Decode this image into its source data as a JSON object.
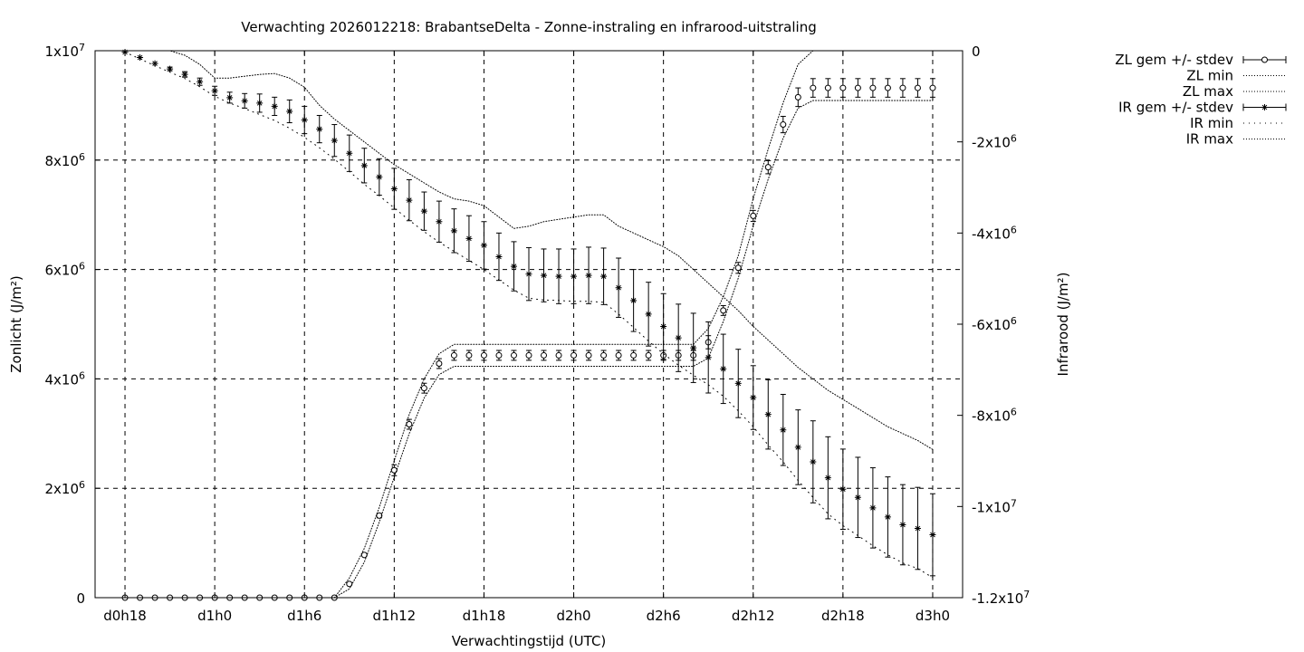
{
  "chart_data": {
    "type": "line",
    "title": "Verwachting 2026012218: BrabantseDelta - Zonne-instraling en infrarood-uitstraling",
    "xlabel": "Verwachtingstijd (UTC)",
    "ylabel": "Zonlicht (J/m²)",
    "y2label": "Infrarood (J/m²)",
    "x_ticks": [
      {
        "x": 18,
        "label": "d0h18"
      },
      {
        "x": 24,
        "label": "d1h0"
      },
      {
        "x": 30,
        "label": "d1h6"
      },
      {
        "x": 36,
        "label": "d1h12"
      },
      {
        "x": 42,
        "label": "d1h18"
      },
      {
        "x": 48,
        "label": "d2h0"
      },
      {
        "x": 54,
        "label": "d2h6"
      },
      {
        "x": 60,
        "label": "d2h12"
      },
      {
        "x": 66,
        "label": "d2h18"
      },
      {
        "x": 72,
        "label": "d3h0"
      }
    ],
    "xlim": [
      16,
      74
    ],
    "y_ticks": [
      {
        "y": 0,
        "label": "0"
      },
      {
        "y": 2000000,
        "label": "2x10",
        "sup": "6"
      },
      {
        "y": 4000000,
        "label": "4x10",
        "sup": "6"
      },
      {
        "y": 6000000,
        "label": "6x10",
        "sup": "6"
      },
      {
        "y": 8000000,
        "label": "8x10",
        "sup": "6"
      },
      {
        "y": 10000000,
        "label": "1x10",
        "sup": "7"
      }
    ],
    "ylim": [
      0,
      10000000
    ],
    "y2_ticks": [
      {
        "y": 0,
        "label": "0"
      },
      {
        "y": -2000000,
        "label": "-2x10",
        "sup": "6"
      },
      {
        "y": -4000000,
        "label": "-4x10",
        "sup": "6"
      },
      {
        "y": -6000000,
        "label": "-6x10",
        "sup": "6"
      },
      {
        "y": -8000000,
        "label": "-8x10",
        "sup": "6"
      },
      {
        "y": -10000000,
        "label": "-1x10",
        "sup": "7"
      },
      {
        "y": -12000000,
        "label": "-1.2x10",
        "sup": "7"
      }
    ],
    "y2lim": [
      -12000000,
      0
    ],
    "grid": true,
    "legend_position": "top-right, outside plot",
    "series": [
      {
        "name": "ZL gem +/- stdev",
        "axis": "y",
        "style": "errorbars-circle",
        "x": [
          18,
          19,
          20,
          21,
          22,
          23,
          24,
          25,
          26,
          27,
          28,
          29,
          30,
          31,
          32,
          33,
          34,
          35,
          36,
          37,
          38,
          39,
          40,
          41,
          42,
          43,
          44,
          45,
          46,
          47,
          48,
          49,
          50,
          51,
          52,
          53,
          54,
          55,
          56,
          57,
          58,
          59,
          60,
          61,
          62,
          63,
          64,
          65,
          66,
          67,
          68,
          69,
          70,
          71,
          72
        ],
        "values": [
          0,
          0,
          0,
          0,
          0,
          0,
          0,
          0,
          0,
          0,
          0,
          0,
          0,
          0,
          0,
          250000,
          780000,
          1500000,
          2330000,
          3170000,
          3830000,
          4280000,
          4430000,
          4430000,
          4430000,
          4430000,
          4430000,
          4430000,
          4430000,
          4430000,
          4430000,
          4430000,
          4430000,
          4430000,
          4430000,
          4430000,
          4430000,
          4430000,
          4430000,
          4670000,
          5250000,
          6030000,
          6980000,
          7870000,
          8650000,
          9150000,
          9320000,
          9320000,
          9320000,
          9320000,
          9320000,
          9320000,
          9320000,
          9320000,
          9320000
        ],
        "stdev": [
          0,
          0,
          0,
          0,
          0,
          0,
          0,
          0,
          0,
          0,
          0,
          0,
          0,
          0,
          0,
          20000,
          20000,
          40000,
          100000,
          90000,
          90000,
          90000,
          90000,
          90000,
          90000,
          90000,
          90000,
          90000,
          90000,
          90000,
          90000,
          90000,
          90000,
          90000,
          90000,
          90000,
          90000,
          90000,
          90000,
          120000,
          90000,
          100000,
          100000,
          120000,
          150000,
          170000,
          170000,
          170000,
          170000,
          170000,
          170000,
          170000,
          170000,
          170000,
          170000
        ]
      },
      {
        "name": "ZL min",
        "axis": "y",
        "style": "dotted",
        "x": [
          18,
          19,
          20,
          21,
          22,
          23,
          24,
          25,
          26,
          27,
          28,
          29,
          30,
          31,
          32,
          33,
          34,
          35,
          36,
          37,
          38,
          39,
          40,
          41,
          42,
          43,
          44,
          45,
          46,
          47,
          48,
          49,
          50,
          51,
          52,
          53,
          54,
          55,
          56,
          57,
          58,
          59,
          60,
          61,
          62,
          63,
          64,
          65,
          66,
          67,
          68,
          69,
          70,
          71,
          72
        ],
        "values": [
          0,
          0,
          0,
          0,
          0,
          0,
          0,
          0,
          0,
          0,
          0,
          0,
          0,
          0,
          0,
          160000,
          650000,
          1380000,
          2200000,
          3000000,
          3650000,
          4080000,
          4230000,
          4230000,
          4230000,
          4230000,
          4230000,
          4230000,
          4230000,
          4230000,
          4230000,
          4230000,
          4230000,
          4230000,
          4230000,
          4230000,
          4230000,
          4230000,
          4230000,
          4380000,
          5050000,
          5840000,
          6800000,
          7650000,
          8400000,
          8950000,
          9090000,
          9090000,
          9090000,
          9090000,
          9090000,
          9090000,
          9090000,
          9090000,
          9090000
        ]
      },
      {
        "name": "ZL max",
        "axis": "y",
        "style": "dotted",
        "x": [
          18,
          19,
          20,
          21,
          22,
          23,
          24,
          25,
          26,
          27,
          28,
          29,
          30,
          31,
          32,
          33,
          34,
          35,
          36,
          37,
          38,
          39,
          40,
          41,
          42,
          43,
          44,
          45,
          46,
          47,
          48,
          49,
          50,
          51,
          52,
          53,
          54,
          55,
          56,
          57,
          58,
          59,
          60,
          61,
          62,
          63,
          64,
          65,
          66,
          67,
          68,
          69,
          70,
          71,
          72
        ],
        "values": [
          0,
          0,
          0,
          0,
          0,
          0,
          0,
          0,
          0,
          0,
          0,
          0,
          0,
          0,
          0,
          360000,
          900000,
          1650000,
          2500000,
          3350000,
          4000000,
          4460000,
          4630000,
          4630000,
          4630000,
          4630000,
          4630000,
          4630000,
          4630000,
          4630000,
          4630000,
          4630000,
          4630000,
          4630000,
          4630000,
          4630000,
          4630000,
          4630000,
          4630000,
          4920000,
          5500000,
          6250000,
          7300000,
          8200000,
          9050000,
          9750000,
          10000000,
          10000000,
          10000000,
          10000000,
          10000000,
          10000000,
          10000000,
          10000000,
          10000000
        ]
      },
      {
        "name": "IR gem +/- stdev",
        "axis": "y2",
        "style": "errorbars-star",
        "x": [
          18,
          19,
          20,
          21,
          22,
          23,
          24,
          25,
          26,
          27,
          28,
          29,
          30,
          31,
          32,
          33,
          34,
          35,
          36,
          37,
          38,
          39,
          40,
          41,
          42,
          43,
          44,
          45,
          46,
          47,
          48,
          49,
          50,
          51,
          52,
          53,
          54,
          55,
          56,
          57,
          58,
          59,
          60,
          61,
          62,
          63,
          64,
          65,
          66,
          67,
          68,
          69,
          70,
          71,
          72
        ],
        "values": [
          -30000,
          -150000,
          -280000,
          -400000,
          -520000,
          -680000,
          -880000,
          -1030000,
          -1100000,
          -1150000,
          -1220000,
          -1330000,
          -1520000,
          -1720000,
          -1970000,
          -2250000,
          -2520000,
          -2770000,
          -3030000,
          -3280000,
          -3520000,
          -3750000,
          -3950000,
          -4120000,
          -4270000,
          -4520000,
          -4730000,
          -4900000,
          -4930000,
          -4950000,
          -4950000,
          -4930000,
          -4950000,
          -5200000,
          -5480000,
          -5780000,
          -6050000,
          -6300000,
          -6520000,
          -6730000,
          -6980000,
          -7300000,
          -7610000,
          -7980000,
          -8320000,
          -8700000,
          -9020000,
          -9370000,
          -9620000,
          -9800000,
          -10030000,
          -10230000,
          -10400000,
          -10480000,
          -10620000
        ],
        "stdev": [
          0,
          0,
          0,
          40000,
          60000,
          80000,
          100000,
          120000,
          160000,
          200000,
          200000,
          250000,
          300000,
          300000,
          350000,
          400000,
          380000,
          400000,
          450000,
          450000,
          420000,
          450000,
          480000,
          500000,
          520000,
          520000,
          540000,
          580000,
          580000,
          600000,
          600000,
          620000,
          620000,
          650000,
          680000,
          700000,
          720000,
          740000,
          760000,
          780000,
          760000,
          750000,
          700000,
          760000,
          780000,
          820000,
          900000,
          900000,
          880000,
          880000,
          880000,
          880000,
          880000,
          900000,
          900000
        ]
      },
      {
        "name": "IR min",
        "axis": "y2",
        "style": "sparse-dotted",
        "x": [
          18,
          19,
          20,
          21,
          22,
          23,
          24,
          25,
          26,
          27,
          28,
          29,
          30,
          31,
          32,
          33,
          34,
          35,
          36,
          37,
          38,
          39,
          40,
          41,
          42,
          43,
          44,
          45,
          46,
          47,
          48,
          49,
          50,
          51,
          52,
          53,
          54,
          55,
          56,
          57,
          58,
          59,
          60,
          61,
          62,
          63,
          64,
          65,
          66,
          67,
          68,
          69,
          70,
          71,
          72
        ],
        "values": [
          -30000,
          -180000,
          -330000,
          -470000,
          -610000,
          -790000,
          -1000000,
          -1150000,
          -1270000,
          -1400000,
          -1530000,
          -1700000,
          -1900000,
          -2130000,
          -2380000,
          -2650000,
          -2930000,
          -3180000,
          -3450000,
          -3720000,
          -3970000,
          -4200000,
          -4400000,
          -4600000,
          -4800000,
          -5030000,
          -5250000,
          -5430000,
          -5470000,
          -5480000,
          -5500000,
          -5500000,
          -5520000,
          -5780000,
          -6070000,
          -6370000,
          -6650000,
          -6900000,
          -7120000,
          -7330000,
          -7580000,
          -7900000,
          -8250000,
          -8650000,
          -9020000,
          -9430000,
          -9800000,
          -10160000,
          -10420000,
          -10640000,
          -10860000,
          -11060000,
          -11240000,
          -11360000,
          -11560000
        ]
      },
      {
        "name": "IR max",
        "axis": "y2",
        "style": "dotted",
        "x": [
          18,
          19,
          20,
          21,
          22,
          23,
          24,
          25,
          26,
          27,
          28,
          29,
          30,
          31,
          32,
          33,
          34,
          35,
          36,
          37,
          38,
          39,
          40,
          41,
          42,
          43,
          44,
          45,
          46,
          47,
          48,
          49,
          50,
          51,
          52,
          53,
          54,
          55,
          56,
          57,
          58,
          59,
          60,
          61,
          62,
          63,
          64,
          65,
          66,
          67,
          68,
          69,
          70,
          71,
          72
        ],
        "values": [
          0,
          0,
          0,
          0,
          -100000,
          -300000,
          -600000,
          -600000,
          -560000,
          -520000,
          -500000,
          -600000,
          -800000,
          -1200000,
          -1500000,
          -1750000,
          -2000000,
          -2250000,
          -2500000,
          -2700000,
          -2900000,
          -3100000,
          -3250000,
          -3300000,
          -3400000,
          -3650000,
          -3900000,
          -3850000,
          -3750000,
          -3700000,
          -3650000,
          -3600000,
          -3600000,
          -3850000,
          -4000000,
          -4150000,
          -4300000,
          -4500000,
          -4800000,
          -5100000,
          -5400000,
          -5700000,
          -6050000,
          -6350000,
          -6650000,
          -6950000,
          -7200000,
          -7450000,
          -7650000,
          -7850000,
          -8050000,
          -8250000,
          -8400000,
          -8550000,
          -8750000
        ]
      }
    ]
  }
}
